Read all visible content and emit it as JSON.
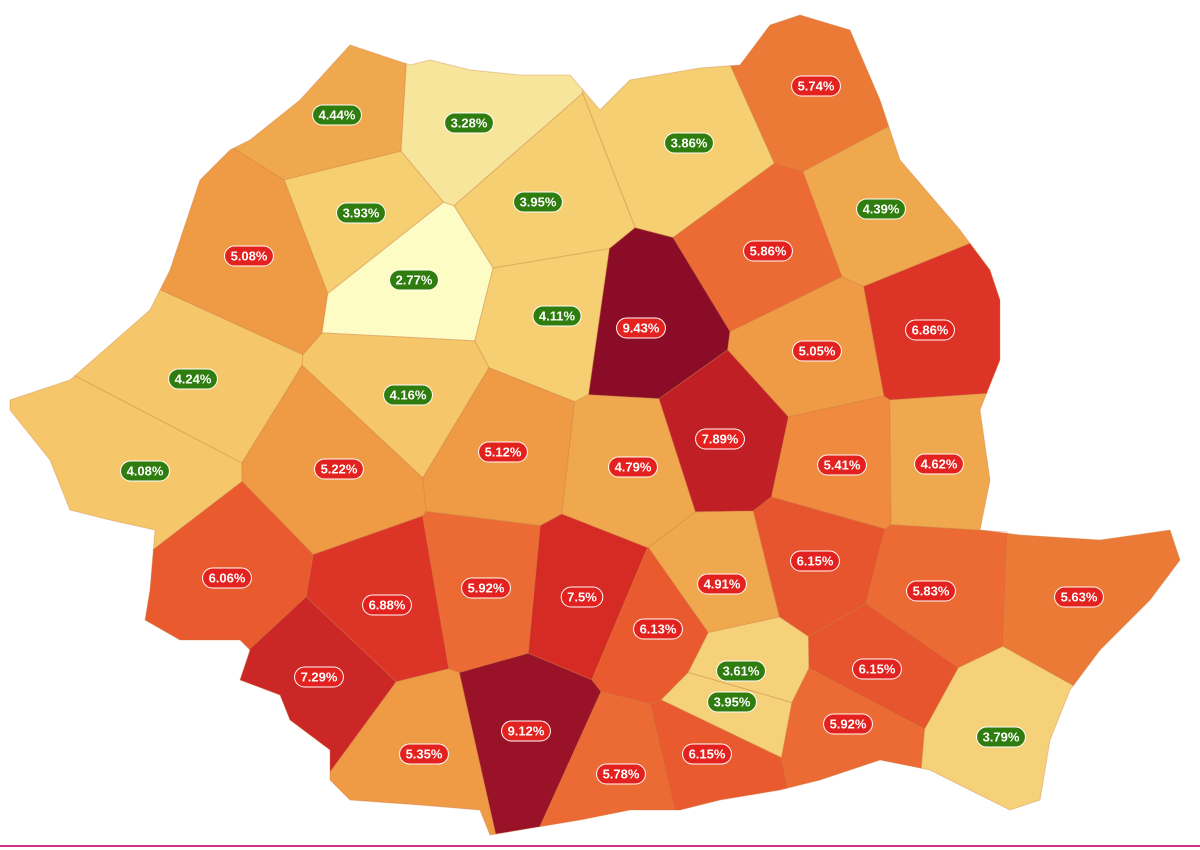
{
  "map": {
    "regions": [
      {
        "label": "4.44%"
      },
      {
        "label": "3.28%"
      },
      {
        "label": "3.86%"
      },
      {
        "label": "5.74%"
      },
      {
        "label": "3.93%"
      },
      {
        "label": "3.95%"
      },
      {
        "label": "4.39%"
      },
      {
        "label": "5.08%"
      },
      {
        "label": "2.77%"
      },
      {
        "label": "5.86%"
      },
      {
        "label": "4.11%"
      },
      {
        "label": "9.43%"
      },
      {
        "label": "6.86%"
      },
      {
        "label": "4.24%"
      },
      {
        "label": "4.16%"
      },
      {
        "label": "5.05%"
      },
      {
        "label": "4.08%"
      },
      {
        "label": "5.22%"
      },
      {
        "label": "5.12%"
      },
      {
        "label": "4.79%"
      },
      {
        "label": "7.89%"
      },
      {
        "label": "5.41%"
      },
      {
        "label": "4.62%"
      },
      {
        "label": "6.06%"
      },
      {
        "label": "6.88%"
      },
      {
        "label": "5.92%"
      },
      {
        "label": "7.5%"
      },
      {
        "label": "6.13%"
      },
      {
        "label": "4.91%"
      },
      {
        "label": "6.15%"
      },
      {
        "label": "5.83%"
      },
      {
        "label": "5.63%"
      },
      {
        "label": "7.29%"
      },
      {
        "label": "3.61%"
      },
      {
        "label": "3.95%"
      },
      {
        "label": "6.15%"
      },
      {
        "label": "9.12%"
      },
      {
        "label": "5.35%"
      },
      {
        "label": "5.78%"
      },
      {
        "label": "6.15%"
      },
      {
        "label": "5.92%"
      },
      {
        "label": "3.79%"
      }
    ]
  }
}
